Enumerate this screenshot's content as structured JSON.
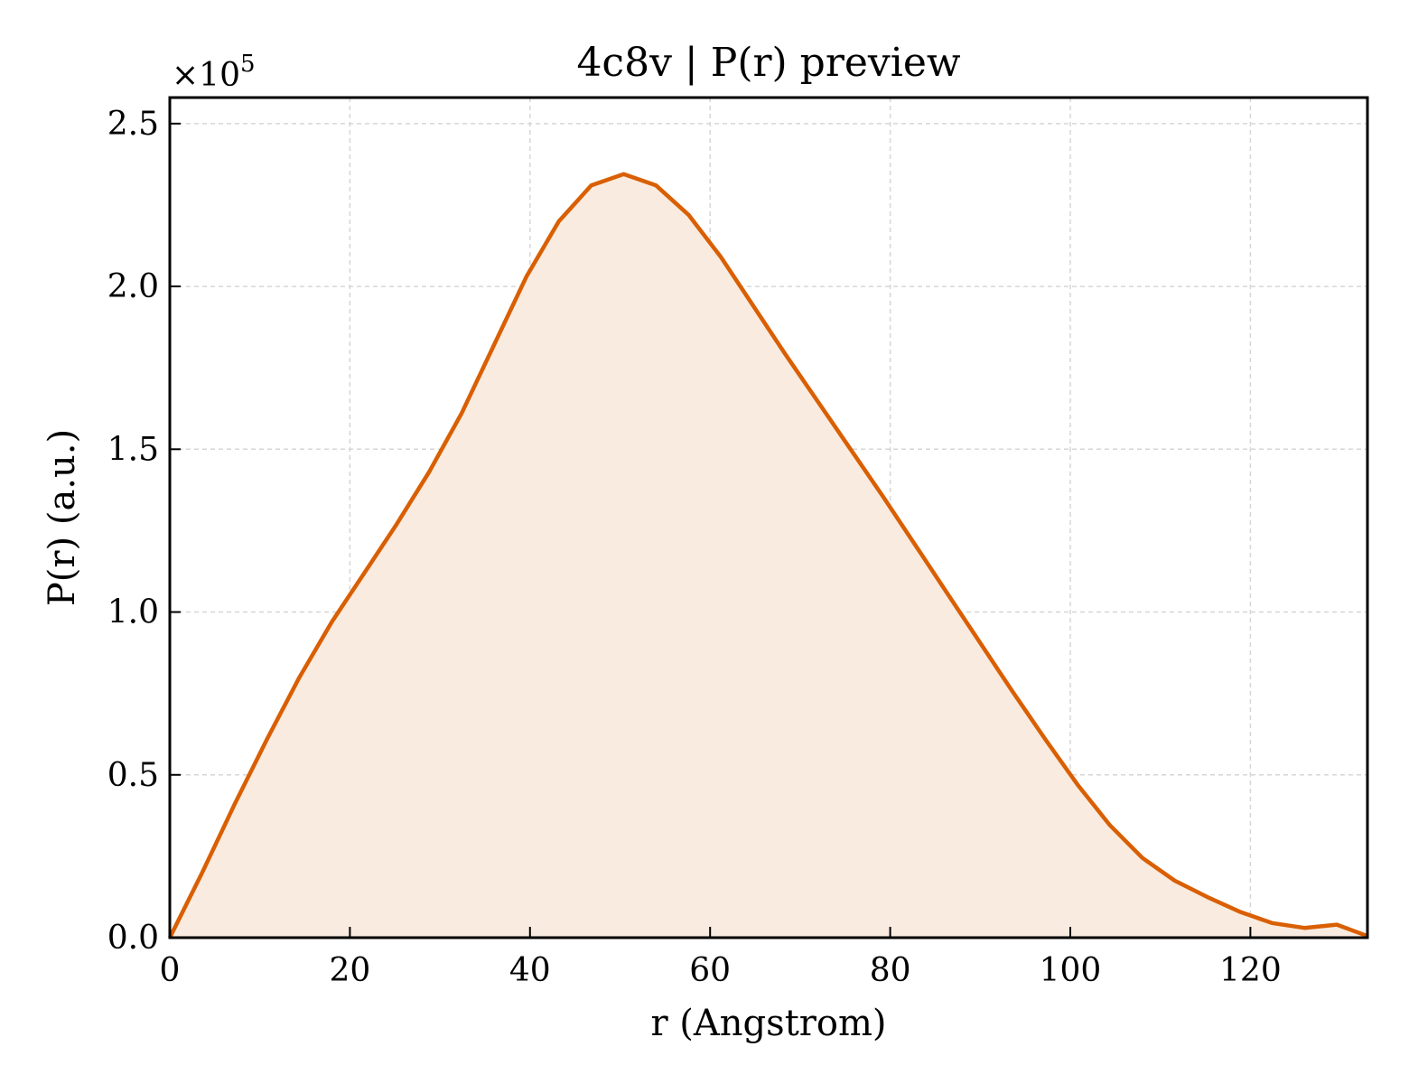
{
  "chart_data": {
    "type": "area",
    "title": "4c8v | P(r) preview",
    "xlabel": "r (Angstrom)",
    "ylabel": "P(r) (a.u.)",
    "y_multiplier_base": "×10",
    "y_multiplier_exponent": "5",
    "xlim": [
      0,
      133
    ],
    "ylim": [
      0,
      2.58
    ],
    "xticks": [
      0,
      20,
      40,
      60,
      80,
      100,
      120
    ],
    "xtick_labels": [
      "0",
      "20",
      "40",
      "60",
      "80",
      "100",
      "120"
    ],
    "yticks": [
      0,
      0.5,
      1.0,
      1.5,
      2.0,
      2.5
    ],
    "ytick_labels": [
      "0.0",
      "0.5",
      "1.0",
      "1.5",
      "2.0",
      "2.5"
    ],
    "grid": true,
    "line_color": "#d95f02",
    "fill_color": "#f9ebe0",
    "series": [
      {
        "x": [
          0,
          3.6,
          7.2,
          10.8,
          14.4,
          18.0,
          21.6,
          25.2,
          28.8,
          32.4,
          36.0,
          39.6,
          43.2,
          46.8,
          50.4,
          54.0,
          57.6,
          61.2,
          64.8,
          68.4,
          72.0,
          75.6,
          79.2,
          82.8,
          86.4,
          90.0,
          93.6,
          97.2,
          100.8,
          104.4,
          108.0,
          111.6,
          115.2,
          118.8,
          122.4,
          126.0,
          129.6,
          133.0
        ],
        "y": [
          0.0,
          0.2,
          0.41,
          0.61,
          0.8,
          0.97,
          1.12,
          1.27,
          1.43,
          1.61,
          1.82,
          2.03,
          2.2,
          2.31,
          2.345,
          2.31,
          2.22,
          2.09,
          1.94,
          1.79,
          1.645,
          1.5,
          1.355,
          1.205,
          1.055,
          0.905,
          0.755,
          0.61,
          0.47,
          0.345,
          0.245,
          0.175,
          0.125,
          0.08,
          0.045,
          0.03,
          0.04,
          0.005
        ]
      }
    ]
  }
}
